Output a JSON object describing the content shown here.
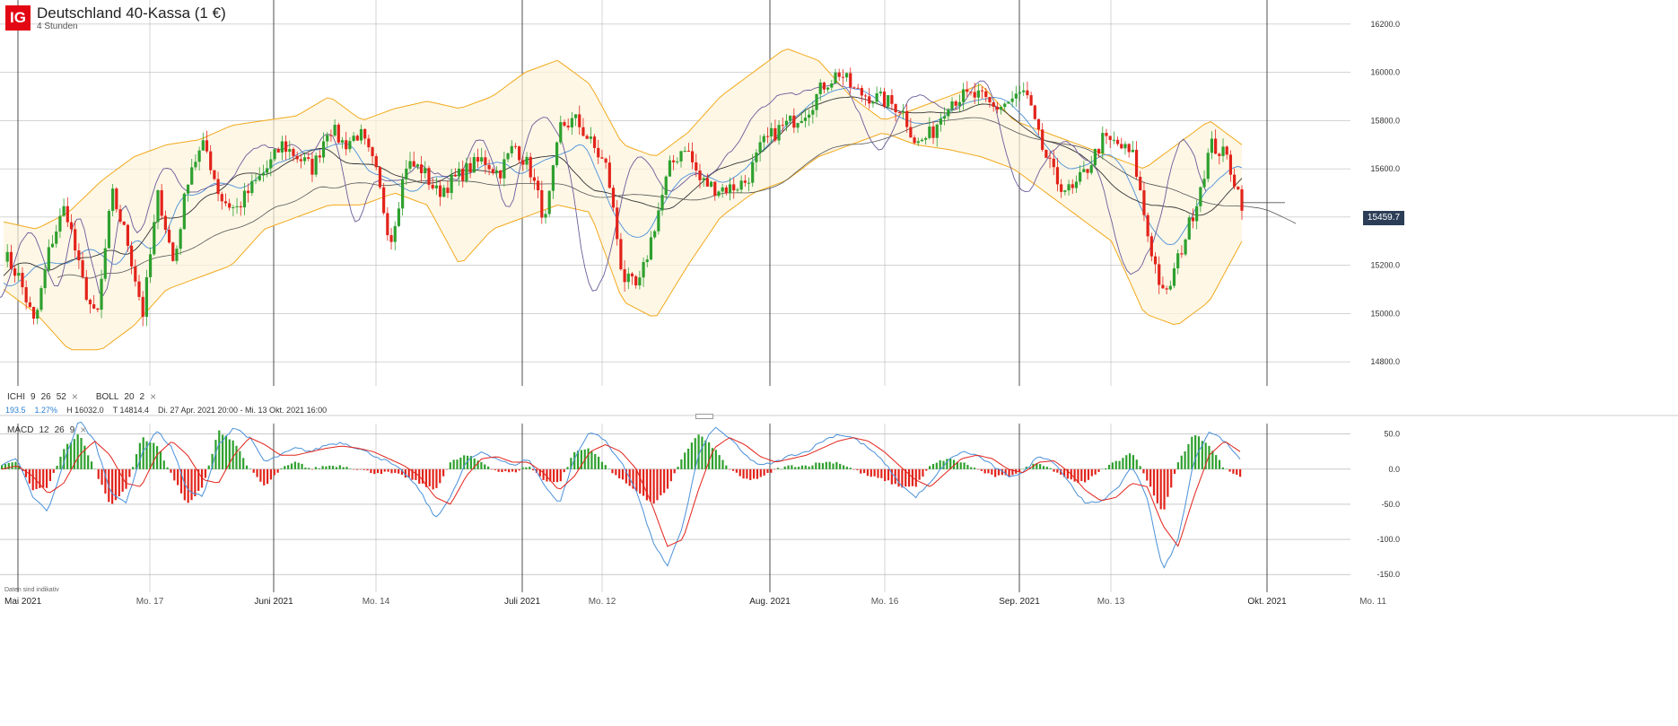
{
  "header": {
    "logo": "IG",
    "title": "Deutschland 40-Kassa (1 €)",
    "interval": "4 Stunden"
  },
  "indicators": {
    "ichi": {
      "name": "ICHI",
      "params": [
        "9",
        "26",
        "52"
      ]
    },
    "boll": {
      "name": "BOLL",
      "params": [
        "20",
        "2"
      ]
    },
    "macd": {
      "name": "MACD",
      "params": [
        "12",
        "26",
        "9"
      ]
    },
    "close_icon": "close-icon"
  },
  "stats": {
    "change": "193.5",
    "change_pct": "1.27%",
    "high": "H 16032.0",
    "low": "T 14814.4",
    "range": "Di. 27 Apr. 2021 20:00 - Mi. 13 Okt. 2021 16:00"
  },
  "footnote": "Daten sind indikativ",
  "last_price": "15459.7",
  "colors": {
    "up": "#2ea02e",
    "down": "#e2231a",
    "boll": "#f2a91c",
    "macd_line": "#4a90d9",
    "signal_line": "#e2231a",
    "ichimoku": "#6b5b9a",
    "price_tag": "#2c3e57"
  },
  "chart_data": [
    {
      "type": "candlestick",
      "ylim": [
        14700,
        16300
      ],
      "yticks": [
        "14800.0",
        "15000.0",
        "15200.0",
        "15400.0",
        "15600.0",
        "15800.0",
        "16000.0",
        "16200.0"
      ],
      "ytick_values": [
        14800,
        15000,
        15200,
        15400,
        15600,
        15800,
        16000,
        16200
      ],
      "xticks": [
        {
          "label": "Mai 2021",
          "major": true
        },
        {
          "label": "Mo. 17",
          "major": false
        },
        {
          "label": "Juni 2021",
          "major": true
        },
        {
          "label": "Mo. 14",
          "major": false
        },
        {
          "label": "Juli 2021",
          "major": true
        },
        {
          "label": "Mo. 12",
          "major": false
        },
        {
          "label": "Aug. 2021",
          "major": true
        },
        {
          "label": "Mo. 16",
          "major": false
        },
        {
          "label": "Sep. 2021",
          "major": true
        },
        {
          "label": "Mo. 13",
          "major": false
        },
        {
          "label": "Okt. 2021",
          "major": true
        },
        {
          "label": "Mo. 11",
          "major": false
        }
      ],
      "price_path": [
        [
          "Mai 2021",
          15250
        ],
        [
          "",
          15150
        ],
        [
          "",
          14950
        ],
        [
          "",
          15280
        ],
        [
          "",
          15450
        ],
        [
          "",
          15150
        ],
        [
          "",
          14960
        ],
        [
          "",
          15500
        ],
        [
          "",
          15300
        ],
        [
          "",
          15000
        ],
        [
          "Mo. 17",
          15500
        ],
        [
          "",
          15200
        ],
        [
          "",
          15600
        ],
        [
          "",
          15700
        ],
        [
          "",
          15480
        ],
        [
          "",
          15430
        ],
        [
          "Juni 2021",
          15520
        ],
        [
          "",
          15600
        ],
        [
          "",
          15700
        ],
        [
          "",
          15650
        ],
        [
          "",
          15600
        ],
        [
          "Mo. 14",
          15780
        ],
        [
          "",
          15700
        ],
        [
          "",
          15750
        ],
        [
          "",
          15600
        ],
        [
          "",
          15300
        ],
        [
          "",
          15620
        ],
        [
          "",
          15600
        ],
        [
          "",
          15500
        ],
        [
          "",
          15550
        ],
        [
          "",
          15600
        ],
        [
          "Juli 2021",
          15640
        ],
        [
          "",
          15580
        ],
        [
          "",
          15700
        ],
        [
          "",
          15600
        ],
        [
          "",
          15380
        ],
        [
          "",
          15780
        ],
        [
          "Mo. 12",
          15800
        ],
        [
          "",
          15700
        ],
        [
          "",
          15600
        ],
        [
          "",
          15150
        ],
        [
          "",
          15100
        ],
        [
          "",
          15350
        ],
        [
          "",
          15600
        ],
        [
          "",
          15700
        ],
        [
          "",
          15550
        ],
        [
          "",
          15520
        ],
        [
          "Aug. 2021",
          15520
        ],
        [
          "",
          15550
        ],
        [
          "",
          15700
        ],
        [
          "",
          15760
        ],
        [
          "",
          15800
        ],
        [
          "",
          15850
        ],
        [
          "",
          15950
        ],
        [
          "Mo. 16",
          16000
        ],
        [
          "",
          15920
        ],
        [
          "",
          15900
        ],
        [
          "",
          15880
        ],
        [
          "",
          15850
        ],
        [
          "",
          15700
        ],
        [
          "",
          15750
        ],
        [
          "",
          15880
        ],
        [
          "",
          15900
        ],
        [
          "Sep. 2021",
          15900
        ],
        [
          "",
          15850
        ],
        [
          "",
          15880
        ],
        [
          "",
          15920
        ],
        [
          "",
          15700
        ],
        [
          "",
          15550
        ],
        [
          "Mo. 13",
          15500
        ],
        [
          "",
          15600
        ],
        [
          "",
          15720
        ],
        [
          "",
          15700
        ],
        [
          "",
          15650
        ],
        [
          "",
          15300
        ],
        [
          "",
          15050
        ],
        [
          "",
          15250
        ],
        [
          "",
          15450
        ],
        [
          "",
          15700
        ],
        [
          "",
          15650
        ],
        [
          "",
          15460
        ]
      ],
      "boll_upper": [
        15380,
        15350,
        15420,
        15550,
        15650,
        15700,
        15720,
        15780,
        15800,
        15820,
        15900,
        15800,
        15850,
        15880,
        15850,
        15900,
        16000,
        16050,
        15950,
        15700,
        15650,
        15750,
        15900,
        16000,
        16100,
        16050,
        15900,
        15800,
        15850,
        15900,
        15950,
        15800,
        15750,
        15700,
        15650,
        15600,
        15700,
        15800,
        15700
      ],
      "boll_lower": [
        15100,
        15000,
        14850,
        14850,
        14950,
        15100,
        15150,
        15200,
        15350,
        15400,
        15450,
        15450,
        15500,
        15450,
        15200,
        15350,
        15400,
        15450,
        15420,
        15050,
        14980,
        15200,
        15400,
        15500,
        15550,
        15650,
        15700,
        15750,
        15700,
        15680,
        15650,
        15600,
        15500,
        15400,
        15300,
        15000,
        14950,
        15050,
        15300
      ],
      "high": "16032.0",
      "low": "14814.4",
      "last": 15459.7
    },
    {
      "type": "macd",
      "ylim": [
        -160,
        65
      ],
      "yticks": [
        "50.0",
        "0.0",
        "-50.0",
        "-100.0",
        "-150.0"
      ],
      "ytick_values": [
        50,
        0,
        -50,
        -100,
        -150
      ],
      "macd": [
        5,
        15,
        -40,
        -60,
        10,
        70,
        40,
        -30,
        -50,
        20,
        55,
        30,
        -30,
        -40,
        35,
        60,
        45,
        10,
        20,
        30,
        25,
        35,
        38,
        30,
        20,
        10,
        -5,
        -30,
        -70,
        -40,
        10,
        25,
        15,
        5,
        15,
        -20,
        -50,
        15,
        55,
        40,
        10,
        -30,
        -100,
        -140,
        -80,
        20,
        60,
        45,
        20,
        5,
        10,
        20,
        25,
        40,
        50,
        45,
        30,
        10,
        -20,
        -40,
        -20,
        10,
        25,
        20,
        5,
        -10,
        -5,
        20,
        10,
        -20,
        -50,
        -45,
        -30,
        5,
        -40,
        -145,
        -100,
        10,
        55,
        40,
        15
      ],
      "signal": [
        0,
        5,
        -10,
        -35,
        -20,
        20,
        40,
        20,
        -20,
        -25,
        20,
        40,
        20,
        -15,
        -20,
        20,
        45,
        35,
        20,
        20,
        25,
        30,
        33,
        30,
        25,
        15,
        5,
        -10,
        -40,
        -50,
        -10,
        15,
        18,
        10,
        10,
        -5,
        -30,
        -10,
        25,
        35,
        25,
        0,
        -50,
        -110,
        -100,
        -30,
        30,
        45,
        35,
        18,
        10,
        15,
        20,
        30,
        40,
        45,
        40,
        25,
        5,
        -15,
        -25,
        -5,
        15,
        20,
        15,
        0,
        -5,
        10,
        12,
        -5,
        -30,
        -45,
        -40,
        -20,
        -25,
        -80,
        -110,
        -40,
        20,
        40,
        25
      ]
    }
  ]
}
